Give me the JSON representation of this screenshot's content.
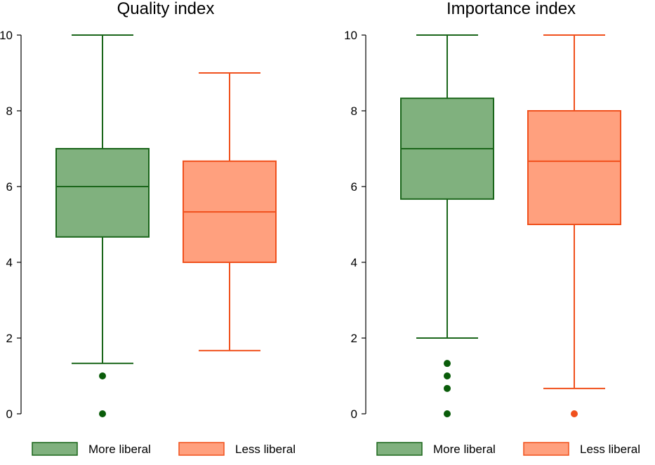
{
  "chart_data": [
    {
      "type": "box",
      "title": "Quality index",
      "ylim": [
        0,
        10
      ],
      "yticks": [
        0,
        2,
        4,
        6,
        8,
        10
      ],
      "grid": false,
      "legend_position": "bottom",
      "series": [
        {
          "name": "More liberal",
          "whisker_low": 1.33,
          "q1": 4.67,
          "median": 6.0,
          "q3": 7.0,
          "whisker_high": 10.0,
          "outliers": [
            1.0,
            0.0
          ]
        },
        {
          "name": "Less liberal",
          "whisker_low": 1.67,
          "q1": 4.0,
          "median": 5.33,
          "q3": 6.67,
          "whisker_high": 9.0,
          "outliers": []
        }
      ]
    },
    {
      "type": "box",
      "title": "Importance index",
      "ylim": [
        0,
        10
      ],
      "yticks": [
        0,
        2,
        4,
        6,
        8,
        10
      ],
      "grid": false,
      "legend_position": "bottom",
      "series": [
        {
          "name": "More liberal",
          "whisker_low": 2.0,
          "q1": 5.67,
          "median": 7.0,
          "q3": 8.33,
          "whisker_high": 10.0,
          "outliers": [
            1.33,
            1.0,
            0.67,
            0.0
          ]
        },
        {
          "name": "Less liberal",
          "whisker_low": 0.67,
          "q1": 5.0,
          "median": 6.67,
          "q3": 8.0,
          "whisker_high": 10.0,
          "outliers": [
            0.0
          ]
        }
      ]
    }
  ],
  "colors": {
    "more_liberal_fill": "#80b17e",
    "more_liberal_stroke": "#1a661a",
    "more_liberal_outlier": "#0a5c0a",
    "less_liberal_fill": "#ffa07e",
    "less_liberal_stroke": "#f0501c",
    "less_liberal_outlier": "#f0501c",
    "axis": "#000000"
  }
}
